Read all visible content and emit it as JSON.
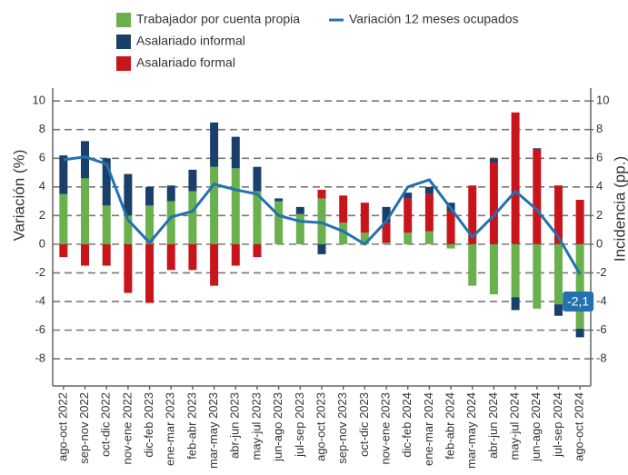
{
  "chart_data": {
    "type": "bar",
    "y_label": "Variación (%)",
    "y2_label": "Incidencia (pp.)",
    "categories": [
      "ago-oct 2022",
      "sep-nov 2022",
      "oct-dic 2022",
      "nov-ene 2022",
      "dic-feb 2023",
      "ene-mar 2023",
      "feb-abr 2023",
      "mar-may 2023",
      "abr-jun 2023",
      "may-jul 2023",
      "jun-ago 2023",
      "jul-sep 2023",
      "ago-oct 2023",
      "sep-nov 2023",
      "oct-dic 2023",
      "nov-ene 2023",
      "dic-feb 2024",
      "ene-mar 2024",
      "feb-abr 2024",
      "mar-may 2024",
      "abr-jun 2024",
      "may-jul 2024",
      "jun-ago 2024",
      "jul-sep 2024",
      "ago-oct 2024"
    ],
    "series": [
      {
        "name": "Trabajador por cuenta propia",
        "color": "#6ab04c",
        "axis": "y2",
        "values": [
          3.5,
          4.6,
          2.7,
          2.0,
          2.7,
          3.0,
          3.7,
          5.4,
          5.3,
          3.7,
          3.0,
          2.1,
          3.2,
          1.5,
          0.8,
          0.1,
          0.8,
          0.9,
          -0.3,
          -2.9,
          -3.5,
          -3.7,
          -4.5,
          -4.2,
          -5.9
        ]
      },
      {
        "name": "Asalariado informal",
        "color": "#1b3f6b",
        "axis": "y2",
        "values": [
          2.7,
          2.6,
          3.3,
          2.9,
          1.3,
          1.1,
          1.5,
          3.1,
          2.2,
          1.7,
          0.2,
          0.5,
          -0.7,
          0,
          0,
          1.1,
          0.4,
          0.5,
          0.6,
          0,
          0.3,
          -0.9,
          0.1,
          -0.8,
          -0.6
        ]
      },
      {
        "name": "Asalariado formal",
        "color": "#c8151b",
        "axis": "y2",
        "values": [
          -0.9,
          -1.5,
          -1.5,
          -3.4,
          -4.1,
          -1.8,
          -1.8,
          -2.9,
          -1.5,
          -0.9,
          0,
          0,
          0.6,
          1.9,
          2.1,
          1.4,
          2.4,
          2.6,
          2.3,
          4.1,
          5.7,
          9.2,
          6.6,
          4.1,
          3.1
        ]
      },
      {
        "name": "Variación 12 meses ocupados",
        "color": "#2371b0",
        "type": "line",
        "values": [
          5.9,
          6.1,
          5.6,
          1.7,
          0.1,
          1.9,
          2.3,
          4.2,
          3.8,
          3.5,
          2.0,
          1.6,
          1.5,
          0.9,
          0.0,
          1.6,
          4.0,
          4.5,
          2.5,
          0.5,
          2.0,
          3.7,
          2.4,
          0.5,
          -2.1
        ],
        "value_labels": [
          null,
          null,
          null,
          null,
          null,
          null,
          null,
          null,
          null,
          null,
          null,
          null,
          null,
          null,
          null,
          null,
          null,
          null,
          null,
          null,
          null,
          null,
          null,
          null,
          "-2,1"
        ]
      }
    ],
    "ylim": [
      -9.9,
      10.9
    ],
    "yticks": [
      -8,
      -6,
      -4,
      -2,
      0,
      2,
      4,
      6,
      8,
      10
    ],
    "y2lim": [
      -9.9,
      10.9
    ],
    "y2ticks": [
      -8,
      -6,
      -4,
      -2,
      0,
      2,
      4,
      6,
      8,
      10
    ],
    "grid": true
  }
}
